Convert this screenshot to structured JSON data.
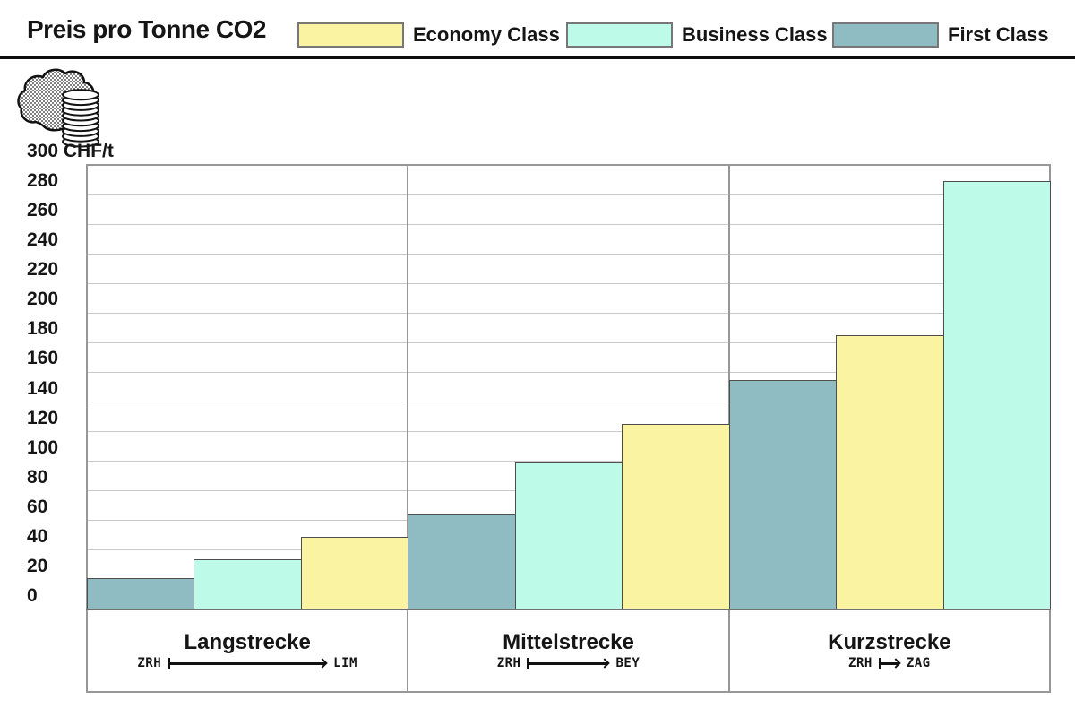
{
  "header": {
    "title": "Preis pro Tonne CO2",
    "legend": [
      {
        "label": "Economy Class",
        "color": "#FAF3A1"
      },
      {
        "label": "Business Class",
        "color": "#BDFAE8"
      },
      {
        "label": "First Class",
        "color": "#8FBCC2"
      }
    ]
  },
  "icons": {
    "header_icon": "co2-cloud-with-coin-stack"
  },
  "chart_data": {
    "type": "bar",
    "title": "Preis pro Tonne CO2",
    "ylabel": "CHF/t",
    "unit_label": "300 CHF/t",
    "ylim": [
      0,
      300
    ],
    "ytick_step": 20,
    "yticks": [
      0,
      20,
      40,
      60,
      80,
      100,
      120,
      140,
      160,
      180,
      200,
      220,
      240,
      260,
      280
    ],
    "grid": true,
    "legend_position": "top",
    "series_colors": {
      "Economy Class": "#FAF3A1",
      "Business Class": "#BDFAE8",
      "First Class": "#8FBCC2"
    },
    "groups": [
      {
        "category": "Langstrecke",
        "route": {
          "from": "ZRH",
          "to": "LIM",
          "arrow": "long"
        },
        "bars": [
          {
            "series": "First Class",
            "value": 21
          },
          {
            "series": "Business Class",
            "value": 34
          },
          {
            "series": "Economy Class",
            "value": 49
          }
        ]
      },
      {
        "category": "Mittelstrecke",
        "route": {
          "from": "ZRH",
          "to": "BEY",
          "arrow": "medium"
        },
        "bars": [
          {
            "series": "First Class",
            "value": 64
          },
          {
            "series": "Business Class",
            "value": 99
          },
          {
            "series": "Economy Class",
            "value": 125
          }
        ]
      },
      {
        "category": "Kurzstrecke",
        "route": {
          "from": "ZRH",
          "to": "ZAG",
          "arrow": "short"
        },
        "bars": [
          {
            "series": "First Class",
            "value": 155
          },
          {
            "series": "Economy Class",
            "value": 185
          },
          {
            "series": "Business Class",
            "value": 289
          }
        ]
      }
    ]
  }
}
